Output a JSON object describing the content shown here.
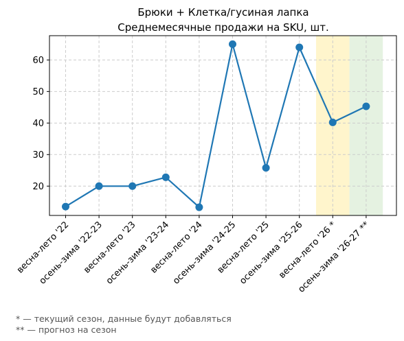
{
  "chart_data": {
    "type": "line",
    "title": "Брюки + Клетка/гусиная лапка",
    "subtitle": "Среднемесячные продажи на SKU, шт.",
    "categories": [
      "весна-лето '22",
      "осень-зима '22-23",
      "весна-лето '23",
      "осень-зима '23-24",
      "весна-лето '24",
      "осень-зима '24-25",
      "весна-лето '25",
      "осень-зима '25-26",
      "весна-лето '26 *",
      "осень-зима '26-27 **"
    ],
    "series": [
      {
        "values": [
          13.5,
          20.0,
          20.0,
          22.8,
          13.3,
          65.0,
          25.8,
          64.0,
          40.2,
          45.3
        ]
      }
    ],
    "ylim": [
      10.7,
      67.7
    ],
    "yticks": [
      20,
      30,
      40,
      50,
      60
    ],
    "grid": true,
    "highlights": [
      {
        "category": "весна-лето '26 *",
        "color": "#fff5cc"
      },
      {
        "category": "осень-зима '26-27 **",
        "color": "#e5f2e1"
      }
    ],
    "line_color": "#1f77b4"
  },
  "footnotes": [
    "* — текущий сезон, данные будут добавляться",
    "** — прогноз на сезон"
  ]
}
